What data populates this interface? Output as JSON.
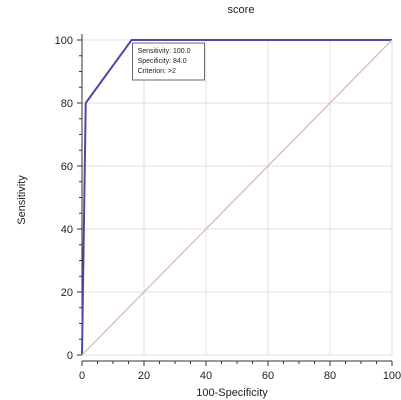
{
  "chart_data": {
    "type": "line",
    "title": "score",
    "xlabel": "100-Specificity",
    "ylabel": "Sensitivity",
    "xlim": [
      0,
      100
    ],
    "ylim": [
      0,
      100
    ],
    "xticks": [
      "0",
      "20",
      "40",
      "60",
      "80",
      "100"
    ],
    "yticks": [
      "0",
      "20",
      "40",
      "60",
      "80",
      "100"
    ],
    "grid": true,
    "series": [
      {
        "color": "#4a4aa8",
        "x": [
          0,
          1.2,
          16,
          100
        ],
        "y": [
          0,
          80,
          100,
          100
        ]
      },
      {
        "color": "#d8b4b4",
        "x": [
          0,
          100
        ],
        "y": [
          0,
          100
        ]
      }
    ],
    "annotation": {
      "lines": [
        "Sensitivity: 100.0",
        "Specificity: 84.0",
        "Criterion: >2"
      ],
      "point": [
        16,
        100
      ]
    }
  }
}
